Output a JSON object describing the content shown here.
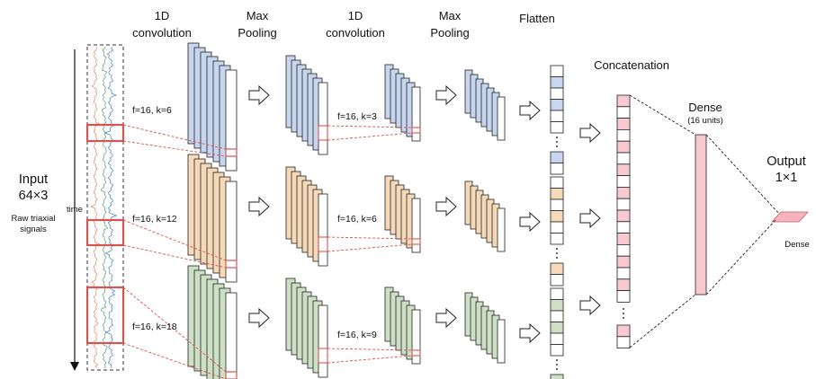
{
  "headers": {
    "conv1": [
      "1D",
      "convolution"
    ],
    "pool1": [
      "Max",
      "Pooling"
    ],
    "conv2": [
      "1D",
      "convolution"
    ],
    "pool2": [
      "Max",
      "Pooling"
    ],
    "flatten": "Flatten",
    "concat": "Concatenation",
    "dense": "Dense",
    "dense_units": "(16 units)",
    "output": [
      "Output",
      "1×1"
    ],
    "output_layer": "Dense"
  },
  "input": {
    "title": [
      "Input",
      "64×3"
    ],
    "caption": [
      "Raw triaxial",
      "signals"
    ],
    "time_label": "time"
  },
  "branches": [
    {
      "color": "#c7d6ee",
      "conv1": "f=16, k=6",
      "conv2": "f=16, k=3"
    },
    {
      "color": "#f6d9b8",
      "conv1": "f=16, k=12",
      "conv2": "f=16, k=6"
    },
    {
      "color": "#cde0c6",
      "conv1": "f=16, k=18",
      "conv2": "f=16, k=9"
    }
  ],
  "colors": {
    "concat_fill": "#f8c9cf",
    "dense_fill": "#f8c9cf",
    "output_fill": "#f4b3bd",
    "highlight": "#d9534f",
    "signal_blue": "#3f7fc4",
    "signal_orange": "#e8855a",
    "signal_green": "#5a9e6a"
  },
  "icons": [
    "right-arrow-icon"
  ]
}
